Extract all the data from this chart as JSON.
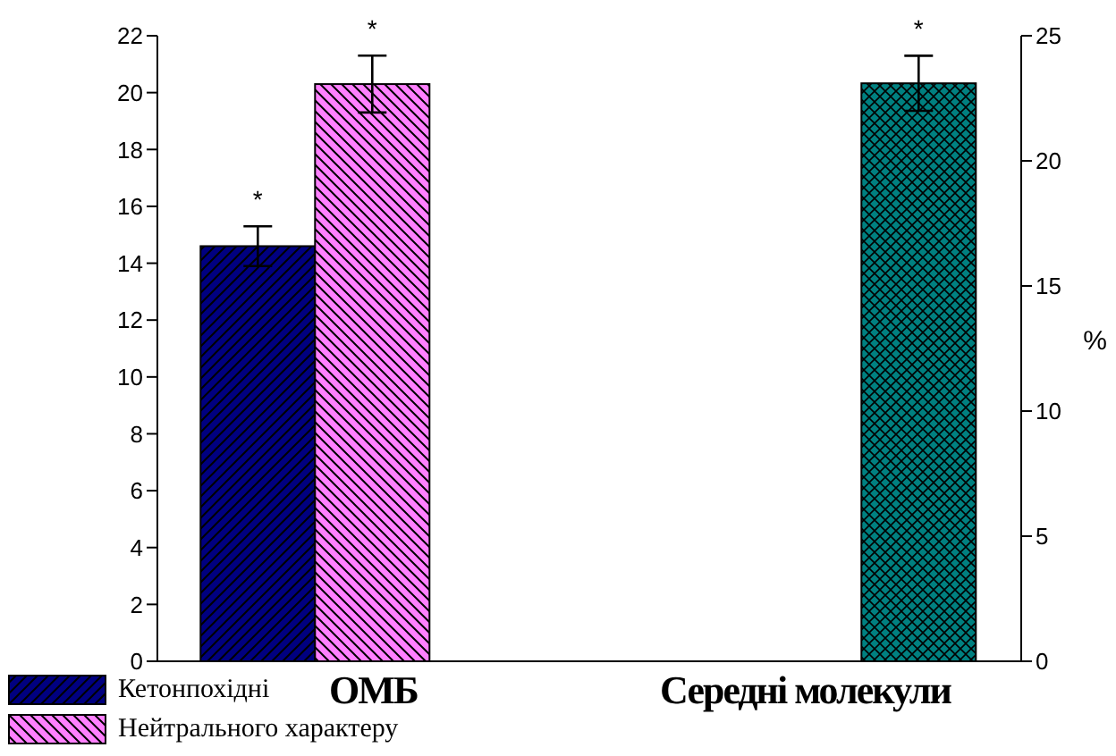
{
  "chart_data": {
    "type": "bar",
    "categories": [
      "ОМБ",
      "Середні молекули"
    ],
    "series": [
      {
        "name": "Кетонпохідні",
        "color": "#000080",
        "values": [
          14.6,
          null
        ],
        "errors": [
          0.7,
          null
        ],
        "value_labels": [
          "*",
          null
        ]
      },
      {
        "name": "Нейтрального характеру",
        "color": "#ff80ff",
        "values": [
          20.3,
          null
        ],
        "errors": [
          1.0,
          null
        ],
        "value_labels": [
          "*",
          null
        ]
      },
      {
        "color": "#008080",
        "axis": "y2",
        "values": [
          null,
          23.1
        ],
        "errors": [
          null,
          1.1
        ],
        "value_labels": [
          null,
          "*"
        ]
      }
    ],
    "ylim": [
      0,
      22
    ],
    "yticks": [
      0,
      2,
      4,
      6,
      8,
      10,
      12,
      14,
      16,
      18,
      20,
      22
    ],
    "y2lim": [
      0,
      25
    ],
    "y2ticks": [
      0,
      5,
      10,
      15,
      20,
      25
    ],
    "y2label": "%",
    "legend": "bottom left"
  }
}
